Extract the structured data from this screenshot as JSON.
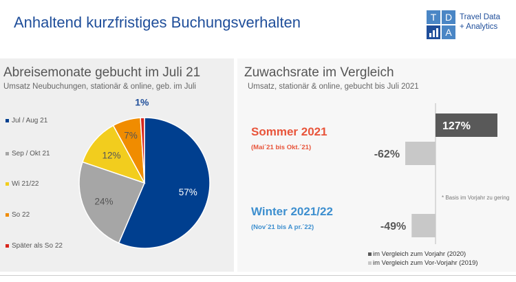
{
  "header": {
    "title": "Anhaltend kurzfristiges Buchungsverhalten",
    "logo": {
      "letters": [
        "T",
        "D",
        "",
        "A"
      ],
      "text_line1": "Travel Data",
      "text_line2": "+ Analytics"
    }
  },
  "left_panel": {
    "title": "Abreisemonate gebucht im Juli 21",
    "subtitle": "Umsatz Neubuchungen, stationär & online, geb. im Juli"
  },
  "right_panel": {
    "title": "Zuwachsrate im Vergleich",
    "subtitle": "Umsatz, stationär & online, gebucht bis Juli 2021",
    "footnote": "* Basis im Vorjahr zu gering"
  },
  "chart_data": [
    {
      "type": "pie",
      "title": "Abreisemonate gebucht im Juli 21",
      "labels": [
        "Jul / Aug 21",
        "Sep / Okt 21",
        "Wi 21/22",
        "So 22",
        "Später als So 22"
      ],
      "values": [
        57,
        24,
        12,
        7,
        1
      ],
      "value_labels": [
        "57%",
        "24%",
        "12%",
        "7%",
        "1%"
      ],
      "colors": [
        "#003f8f",
        "#a6a6a6",
        "#f2cd1e",
        "#f08c00",
        "#d8261c"
      ]
    },
    {
      "type": "bar",
      "orientation": "horizontal",
      "title": "Zuwachsrate im Vergleich",
      "categories": [
        {
          "name": "Sommer 2021",
          "sub": "(Mai´21 bis Okt.´21)",
          "color": "#e8543a"
        },
        {
          "name": "Winter 2021/22",
          "sub": "(Nov´21 bis A pr.´22)",
          "color": "#3d8fcf"
        }
      ],
      "series": [
        {
          "name": "im Vergleich zum Vorjahr (2020)",
          "color": "#595959",
          "values": [
            127,
            null
          ],
          "value_labels": [
            "127%",
            ""
          ]
        },
        {
          "name": "im Vergleich zum Vor-Vorjahr (2019)",
          "color": "#c8c8c8",
          "values": [
            -62,
            -49
          ],
          "value_labels": [
            "-62%",
            "-49%"
          ]
        }
      ],
      "unit": "%"
    }
  ]
}
